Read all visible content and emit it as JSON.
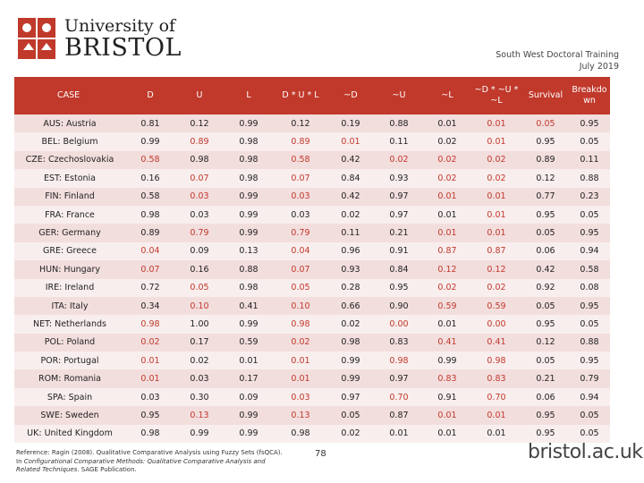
{
  "logo": {
    "line1": "University of",
    "line2": "BRISTOL"
  },
  "header_right": {
    "line1": "South West Doctoral Training",
    "line2": "July 2019"
  },
  "table": {
    "headers": [
      "CASE",
      "D",
      "U",
      "L",
      "D * U * L",
      "~D",
      "~U",
      "~L",
      "~D * ~U * ~L",
      "Survival",
      "Breakdo wn"
    ],
    "rows": [
      [
        "AUS: Austria",
        "0.81",
        "0.12",
        "0.99",
        "0.12",
        "0.19",
        "0.88",
        "0.01",
        "0.01",
        "0.05",
        "0.95"
      ],
      [
        "BEL: Belgium",
        "0.99",
        "0.89",
        "0.98",
        "0.89",
        "0.01",
        "0.11",
        "0.02",
        "0.01",
        "0.95",
        "0.05"
      ],
      [
        "CZE: Czechoslovakia",
        "0.58",
        "0.98",
        "0.98",
        "0.58",
        "0.42",
        "0.02",
        "0.02",
        "0.02",
        "0.89",
        "0.11"
      ],
      [
        "EST: Estonia",
        "0.16",
        "0.07",
        "0.98",
        "0.07",
        "0.84",
        "0.93",
        "0.02",
        "0.02",
        "0.12",
        "0.88"
      ],
      [
        "FIN: Finland",
        "0.58",
        "0.03",
        "0.99",
        "0.03",
        "0.42",
        "0.97",
        "0.01",
        "0.01",
        "0.77",
        "0.23"
      ],
      [
        "FRA: France",
        "0.98",
        "0.03",
        "0.99",
        "0.03",
        "0.02",
        "0.97",
        "0.01",
        "0.01",
        "0.95",
        "0.05"
      ],
      [
        "GER: Germany",
        "0.89",
        "0.79",
        "0.99",
        "0.79",
        "0.11",
        "0.21",
        "0.01",
        "0.01",
        "0.05",
        "0.95"
      ],
      [
        "GRE: Greece",
        "0.04",
        "0.09",
        "0.13",
        "0.04",
        "0.96",
        "0.91",
        "0.87",
        "0.87",
        "0.06",
        "0.94"
      ],
      [
        "HUN: Hungary",
        "0.07",
        "0.16",
        "0.88",
        "0.07",
        "0.93",
        "0.84",
        "0.12",
        "0.12",
        "0.42",
        "0.58"
      ],
      [
        "IRE: Ireland",
        "0.72",
        "0.05",
        "0.98",
        "0.05",
        "0.28",
        "0.95",
        "0.02",
        "0.02",
        "0.92",
        "0.08"
      ],
      [
        "ITA: Italy",
        "0.34",
        "0.10",
        "0.41",
        "0.10",
        "0.66",
        "0.90",
        "0.59",
        "0.59",
        "0.05",
        "0.95"
      ],
      [
        "NET: Netherlands",
        "0.98",
        "1.00",
        "0.99",
        "0.98",
        "0.02",
        "0.00",
        "0.01",
        "0.00",
        "0.95",
        "0.05"
      ],
      [
        "POL: Poland",
        "0.02",
        "0.17",
        "0.59",
        "0.02",
        "0.98",
        "0.83",
        "0.41",
        "0.41",
        "0.12",
        "0.88"
      ],
      [
        "POR: Portugal",
        "0.01",
        "0.02",
        "0.01",
        "0.01",
        "0.99",
        "0.98",
        "0.99",
        "0.98",
        "0.05",
        "0.95"
      ],
      [
        "ROM: Romania",
        "0.01",
        "0.03",
        "0.17",
        "0.01",
        "0.99",
        "0.97",
        "0.83",
        "0.83",
        "0.21",
        "0.79"
      ],
      [
        "SPA: Spain",
        "0.03",
        "0.30",
        "0.09",
        "0.03",
        "0.97",
        "0.70",
        "0.91",
        "0.70",
        "0.06",
        "0.94"
      ],
      [
        "SWE: Sweden",
        "0.95",
        "0.13",
        "0.99",
        "0.13",
        "0.05",
        "0.87",
        "0.01",
        "0.01",
        "0.95",
        "0.05"
      ],
      [
        "UK: United Kingdom",
        "0.98",
        "0.99",
        "0.99",
        "0.98",
        "0.02",
        "0.01",
        "0.01",
        "0.01",
        "0.95",
        "0.05"
      ]
    ],
    "highlight": [
      [
        0,
        0,
        0,
        0,
        0,
        0,
        0,
        1,
        1,
        0
      ],
      [
        0,
        1,
        0,
        1,
        1,
        0,
        0,
        1,
        0,
        0
      ],
      [
        1,
        0,
        0,
        1,
        0,
        1,
        1,
        1,
        0,
        0
      ],
      [
        0,
        1,
        0,
        1,
        0,
        0,
        1,
        1,
        0,
        0
      ],
      [
        0,
        1,
        0,
        1,
        0,
        0,
        1,
        1,
        0,
        0
      ],
      [
        0,
        0,
        0,
        0,
        0,
        0,
        0,
        1,
        0,
        0
      ],
      [
        0,
        1,
        0,
        1,
        0,
        0,
        1,
        1,
        0,
        0
      ],
      [
        1,
        0,
        0,
        1,
        0,
        0,
        1,
        1,
        0,
        0
      ],
      [
        1,
        0,
        0,
        1,
        0,
        0,
        1,
        1,
        0,
        0
      ],
      [
        0,
        1,
        0,
        1,
        0,
        0,
        1,
        1,
        0,
        0
      ],
      [
        0,
        1,
        0,
        1,
        0,
        0,
        1,
        1,
        0,
        0
      ],
      [
        1,
        0,
        0,
        1,
        0,
        1,
        0,
        1,
        0,
        0
      ],
      [
        1,
        0,
        0,
        1,
        0,
        0,
        1,
        1,
        0,
        0
      ],
      [
        1,
        0,
        0,
        1,
        0,
        1,
        0,
        1,
        0,
        0
      ],
      [
        1,
        0,
        0,
        1,
        0,
        0,
        1,
        1,
        0,
        0
      ],
      [
        0,
        0,
        0,
        1,
        0,
        1,
        0,
        1,
        0,
        0
      ],
      [
        0,
        1,
        0,
        1,
        0,
        0,
        1,
        1,
        0,
        0
      ],
      [
        0,
        0,
        0,
        0,
        0,
        0,
        0,
        0,
        0,
        0
      ]
    ]
  },
  "reference": {
    "part1": "Reference: Ragin (2008). Qualitative Comparative Analysis using Fuzzy Sets (fsQCA). In ",
    "title": "Configurational Comparative Methods: Qualitative Comparative Analysis and Related Techniques",
    "part2": ". SAGE Publication."
  },
  "page_number": "78",
  "footer_logo": "bristol.ac.uk",
  "colors": {
    "header_bg": "#c0392b",
    "row_odd": "#f3dede",
    "row_even": "#f9eeee",
    "highlight_text": "#c0392b"
  }
}
